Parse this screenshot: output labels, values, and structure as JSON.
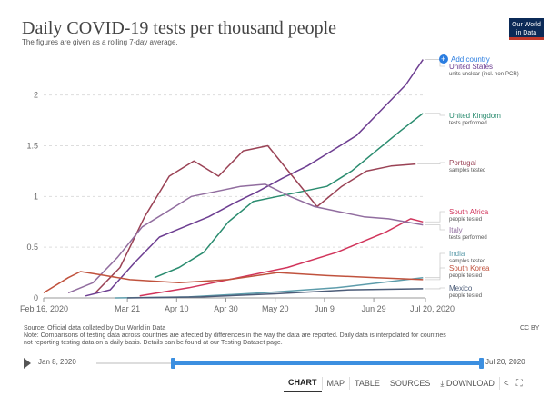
{
  "header": {
    "title": "Daily COVID-19 tests per thousand people",
    "subtitle": "The figures are given as a rolling 7-day average.",
    "logo_line1": "Our World",
    "logo_line2": "in Data"
  },
  "add_country_label": "Add country",
  "chart_data": {
    "type": "line",
    "title": "Daily COVID-19 tests per thousand people",
    "subtitle": "The figures are given as a rolling 7-day average.",
    "x_start": "2020-02-16",
    "x_end": "2020-07-20",
    "x_ticks": [
      "Feb 16, 2020",
      "Mar 21",
      "Apr 10",
      "Apr 30",
      "May 20",
      "Jun 9",
      "Jun 29",
      "Jul 20, 2020"
    ],
    "x_tick_dates": [
      "2020-02-16",
      "2020-03-21",
      "2020-04-10",
      "2020-04-30",
      "2020-05-20",
      "2020-06-09",
      "2020-06-29",
      "2020-07-20"
    ],
    "y_ticks": [
      "0",
      "0.5",
      "1",
      "1.5",
      "2"
    ],
    "ylim": [
      0,
      2.4
    ],
    "grid": true,
    "legend": "right",
    "series": [
      {
        "name": "United States",
        "note": "units unclear (incl. non-PCR)",
        "color": "#6d3e91",
        "points": [
          [
            "2020-03-04",
            0.02
          ],
          [
            "2020-03-14",
            0.08
          ],
          [
            "2020-03-24",
            0.35
          ],
          [
            "2020-04-03",
            0.6
          ],
          [
            "2020-04-13",
            0.7
          ],
          [
            "2020-04-23",
            0.8
          ],
          [
            "2020-05-03",
            0.93
          ],
          [
            "2020-05-13",
            1.05
          ],
          [
            "2020-05-23",
            1.18
          ],
          [
            "2020-06-02",
            1.3
          ],
          [
            "2020-06-12",
            1.45
          ],
          [
            "2020-06-22",
            1.6
          ],
          [
            "2020-07-02",
            1.85
          ],
          [
            "2020-07-12",
            2.1
          ],
          [
            "2020-07-19",
            2.35
          ]
        ]
      },
      {
        "name": "United Kingdom",
        "note": "tests performed",
        "color": "#2a8c6f",
        "points": [
          [
            "2020-04-01",
            0.2
          ],
          [
            "2020-04-11",
            0.3
          ],
          [
            "2020-04-21",
            0.45
          ],
          [
            "2020-05-01",
            0.75
          ],
          [
            "2020-05-11",
            0.95
          ],
          [
            "2020-05-21",
            1.0
          ],
          [
            "2020-05-31",
            1.05
          ],
          [
            "2020-06-10",
            1.1
          ],
          [
            "2020-06-20",
            1.25
          ],
          [
            "2020-06-30",
            1.45
          ],
          [
            "2020-07-10",
            1.65
          ],
          [
            "2020-07-19",
            1.82
          ]
        ]
      },
      {
        "name": "Portugal",
        "note": "samples tested",
        "color": "#9a4255",
        "points": [
          [
            "2020-03-08",
            0.05
          ],
          [
            "2020-03-18",
            0.3
          ],
          [
            "2020-03-28",
            0.8
          ],
          [
            "2020-04-07",
            1.2
          ],
          [
            "2020-04-17",
            1.35
          ],
          [
            "2020-04-27",
            1.2
          ],
          [
            "2020-05-07",
            1.45
          ],
          [
            "2020-05-17",
            1.5
          ],
          [
            "2020-05-27",
            1.2
          ],
          [
            "2020-06-06",
            0.9
          ],
          [
            "2020-06-16",
            1.1
          ],
          [
            "2020-06-26",
            1.25
          ],
          [
            "2020-07-06",
            1.3
          ],
          [
            "2020-07-16",
            1.32
          ]
        ]
      },
      {
        "name": "South Africa",
        "note": "people tested",
        "color": "#d1345b",
        "points": [
          [
            "2020-03-26",
            0.02
          ],
          [
            "2020-04-15",
            0.1
          ],
          [
            "2020-05-05",
            0.2
          ],
          [
            "2020-05-25",
            0.3
          ],
          [
            "2020-06-14",
            0.45
          ],
          [
            "2020-07-04",
            0.65
          ],
          [
            "2020-07-14",
            0.78
          ],
          [
            "2020-07-19",
            0.75
          ]
        ]
      },
      {
        "name": "Italy",
        "note": "tests performed",
        "color": "#916d9f",
        "points": [
          [
            "2020-02-26",
            0.05
          ],
          [
            "2020-03-07",
            0.15
          ],
          [
            "2020-03-17",
            0.4
          ],
          [
            "2020-03-27",
            0.7
          ],
          [
            "2020-04-06",
            0.85
          ],
          [
            "2020-04-16",
            1.0
          ],
          [
            "2020-04-26",
            1.05
          ],
          [
            "2020-05-06",
            1.1
          ],
          [
            "2020-05-16",
            1.12
          ],
          [
            "2020-05-26",
            1.0
          ],
          [
            "2020-06-05",
            0.9
          ],
          [
            "2020-06-15",
            0.85
          ],
          [
            "2020-06-25",
            0.8
          ],
          [
            "2020-07-05",
            0.78
          ],
          [
            "2020-07-19",
            0.72
          ]
        ]
      },
      {
        "name": "India",
        "note": "samples tested",
        "color": "#5d9cab",
        "points": [
          [
            "2020-03-16",
            0.0
          ],
          [
            "2020-04-15",
            0.01
          ],
          [
            "2020-05-15",
            0.05
          ],
          [
            "2020-06-14",
            0.1
          ],
          [
            "2020-07-19",
            0.2
          ]
        ]
      },
      {
        "name": "South Korea",
        "note": "people tested",
        "color": "#c0523d",
        "points": [
          [
            "2020-02-16",
            0.05
          ],
          [
            "2020-02-26",
            0.2
          ],
          [
            "2020-03-02",
            0.26
          ],
          [
            "2020-03-12",
            0.22
          ],
          [
            "2020-03-22",
            0.18
          ],
          [
            "2020-04-11",
            0.15
          ],
          [
            "2020-05-01",
            0.18
          ],
          [
            "2020-05-21",
            0.25
          ],
          [
            "2020-06-10",
            0.22
          ],
          [
            "2020-06-30",
            0.2
          ],
          [
            "2020-07-19",
            0.18
          ]
        ]
      },
      {
        "name": "Mexico",
        "note": "people tested",
        "color": "#4c5c78",
        "points": [
          [
            "2020-03-21",
            0.0
          ],
          [
            "2020-04-20",
            0.01
          ],
          [
            "2020-05-20",
            0.04
          ],
          [
            "2020-06-19",
            0.08
          ],
          [
            "2020-07-19",
            0.09
          ]
        ]
      }
    ]
  },
  "footer": {
    "note_line1": "Source: Official data collated by Our World in Data",
    "note_line2": "Note: Comparisons of testing data across countries are affected by differences in the way the data are reported. Daily data is interpolated for countries",
    "note_line3": "not reporting testing data on a daily basis. Details can be found at our Testing Dataset page.",
    "license": "CC BY"
  },
  "timeline": {
    "start_label": "Jan 8, 2020",
    "end_label": "Jul 20, 2020"
  },
  "toolbar": {
    "chart": "CHART",
    "map": "MAP",
    "table": "TABLE",
    "sources": "SOURCES",
    "download": "DOWNLOAD"
  }
}
